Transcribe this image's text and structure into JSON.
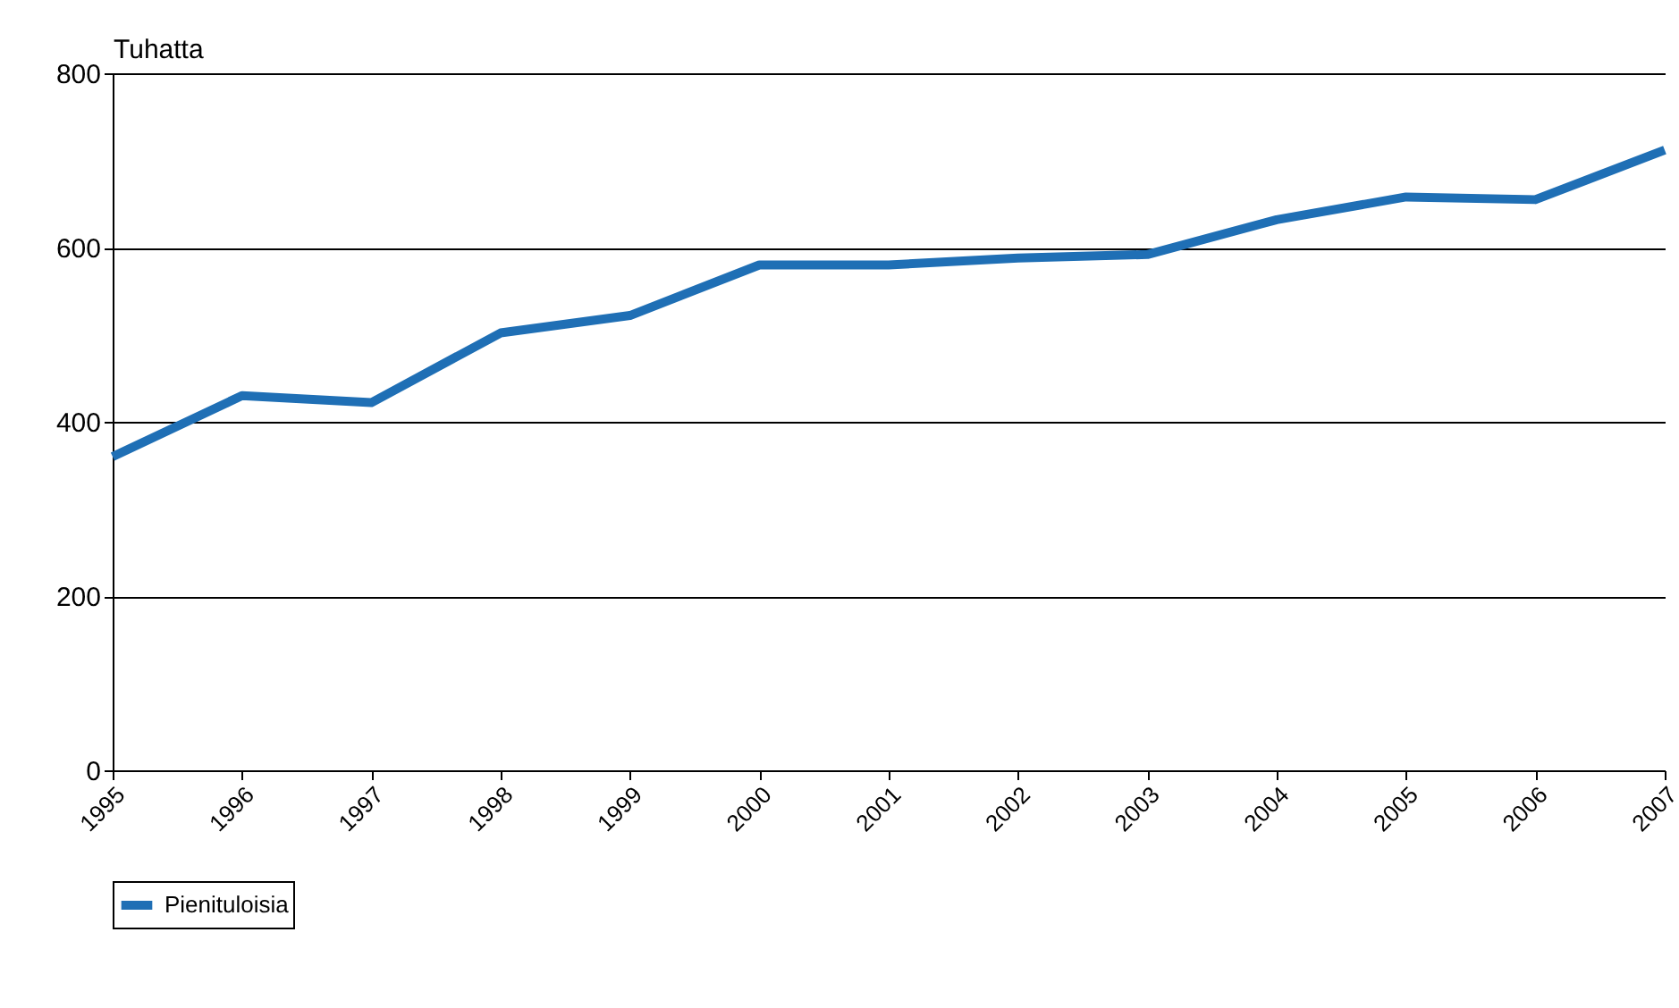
{
  "chart_data": {
    "type": "line",
    "ylabel": "Tuhatta",
    "x": [
      1995,
      1996,
      1997,
      1998,
      1999,
      2000,
      2001,
      2002,
      2003,
      2004,
      2005,
      2006,
      2007
    ],
    "series": [
      {
        "name": "Pienituloisia",
        "color": "#1f6fb5",
        "values": [
          360,
          430,
          422,
          502,
          522,
          580,
          580,
          588,
          592,
          632,
          658,
          655,
          712
        ]
      }
    ],
    "xlim": [
      1995,
      2007
    ],
    "xticks": [
      1995,
      1996,
      1997,
      1998,
      1999,
      2000,
      2001,
      2002,
      2003,
      2004,
      2005,
      2006,
      2007
    ],
    "ylim": [
      0,
      800
    ],
    "yticks": [
      0,
      200,
      400,
      600,
      800
    ],
    "grid": "y",
    "legend": "bottom",
    "line_style": "solid",
    "marker": "none"
  }
}
